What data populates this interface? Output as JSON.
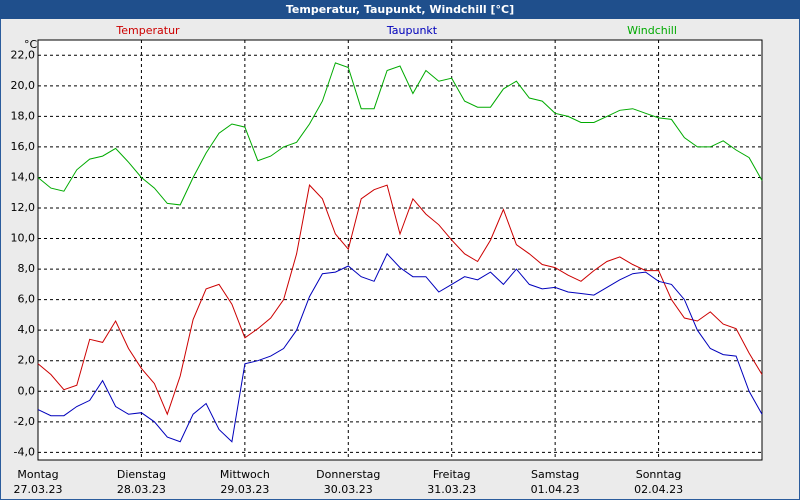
{
  "chart_data": {
    "type": "line",
    "title": "Temperatur, Taupunkt, Windchill [°C]",
    "y_unit": "°C",
    "days": [
      {
        "name": "Montag",
        "date": "27.03.23"
      },
      {
        "name": "Dienstag",
        "date": "28.03.23"
      },
      {
        "name": "Mittwoch",
        "date": "29.03.23"
      },
      {
        "name": "Donnerstag",
        "date": "30.03.23"
      },
      {
        "name": "Freitag",
        "date": "31.03.23"
      },
      {
        "name": "Samstag",
        "date": "01.04.23"
      },
      {
        "name": "Sonntag",
        "date": "02.04.23"
      }
    ],
    "series": [
      {
        "name": "Temperatur",
        "color": "#cc0000",
        "values": [
          1.8,
          1.1,
          0.1,
          0.4,
          3.4,
          3.2,
          4.6,
          2.8,
          1.5,
          0.5,
          -1.5,
          1.0,
          4.7,
          6.7,
          7.0,
          5.7,
          3.5,
          4.1,
          4.8,
          6.0,
          9.0,
          13.5,
          12.6,
          10.3,
          9.3,
          12.6,
          13.2,
          13.5,
          10.3,
          12.6,
          11.6,
          10.9,
          9.9,
          9.0,
          8.5,
          9.9,
          11.9,
          9.6,
          9.0,
          8.3,
          8.1,
          7.6,
          7.2,
          7.9,
          8.5,
          8.8,
          8.3,
          7.9,
          7.9,
          6.0,
          4.8,
          4.6,
          5.2,
          4.4,
          4.1,
          2.5,
          1.1
        ]
      },
      {
        "name": "Taupunkt",
        "color": "#0000bb",
        "values": [
          -1.2,
          -1.6,
          -1.6,
          -1.0,
          -0.6,
          0.7,
          -1.0,
          -1.5,
          -1.4,
          -2.0,
          -3.0,
          -3.3,
          -1.5,
          -0.8,
          -2.5,
          -3.3,
          1.8,
          2.0,
          2.3,
          2.8,
          4.0,
          6.2,
          7.7,
          7.8,
          8.2,
          7.5,
          7.2,
          9.0,
          8.1,
          7.5,
          7.5,
          6.5,
          7.0,
          7.5,
          7.3,
          7.8,
          7.0,
          8.0,
          7.0,
          6.7,
          6.8,
          6.5,
          6.4,
          6.3,
          6.8,
          7.3,
          7.7,
          7.8,
          7.2,
          7.0,
          6.0,
          4.0,
          2.8,
          2.4,
          2.3,
          0.0,
          -1.5
        ]
      },
      {
        "name": "Windchill",
        "color": "#00aa00",
        "values": [
          14.0,
          13.3,
          13.1,
          14.5,
          15.2,
          15.4,
          15.9,
          15.0,
          14.0,
          13.3,
          12.3,
          12.2,
          14.0,
          15.6,
          16.9,
          17.5,
          17.3,
          15.1,
          15.4,
          16.0,
          16.3,
          17.5,
          19.0,
          21.5,
          21.2,
          18.5,
          18.5,
          21.0,
          21.3,
          19.5,
          21.0,
          20.3,
          20.5,
          19.0,
          18.6,
          18.6,
          19.8,
          20.3,
          19.2,
          19.0,
          18.2,
          18.0,
          17.6,
          17.6,
          18.0,
          18.4,
          18.5,
          18.2,
          17.9,
          17.8,
          16.6,
          16.0,
          16.0,
          16.4,
          15.8,
          15.3,
          13.8
        ]
      }
    ],
    "ylim": [
      -4.5,
      23
    ],
    "yticks": [
      {
        "value": -4,
        "label": "-4,0"
      },
      {
        "value": -2,
        "label": "-2,0"
      },
      {
        "value": 0,
        "label": "0,0"
      },
      {
        "value": 2,
        "label": "2,0"
      },
      {
        "value": 4,
        "label": "4,0"
      },
      {
        "value": 6,
        "label": "6,0"
      },
      {
        "value": 8,
        "label": "8,0"
      },
      {
        "value": 10,
        "label": "10,0"
      },
      {
        "value": 12,
        "label": "12,0"
      },
      {
        "value": 14,
        "label": "14,0"
      },
      {
        "value": 16,
        "label": "16,0"
      },
      {
        "value": 18,
        "label": "18,0"
      },
      {
        "value": 20,
        "label": "20,0"
      },
      {
        "value": 22,
        "label": "22,0"
      }
    ],
    "grid": true
  }
}
